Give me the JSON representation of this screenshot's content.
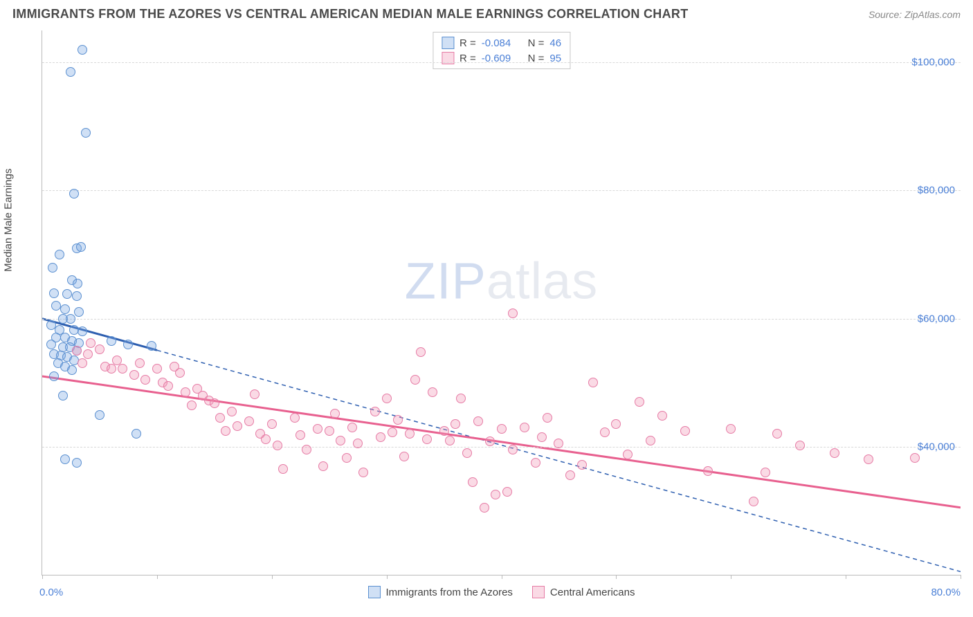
{
  "header": {
    "title": "IMMIGRANTS FROM THE AZORES VS CENTRAL AMERICAN MEDIAN MALE EARNINGS CORRELATION CHART",
    "source_prefix": "Source: ",
    "source_name": "ZipAtlas.com"
  },
  "chart": {
    "type": "scatter",
    "ylabel": "Median Male Earnings",
    "xlim": [
      0,
      80
    ],
    "ylim": [
      20000,
      105000
    ],
    "yticks": [
      40000,
      60000,
      80000,
      100000
    ],
    "ytick_labels": [
      "$40,000",
      "$60,000",
      "$80,000",
      "$100,000"
    ],
    "xtick_positions": [
      0,
      10,
      20,
      30,
      40,
      50,
      60,
      70,
      80
    ],
    "xlabel_min": "0.0%",
    "xlabel_max": "80.0%",
    "grid_color": "#d8d8d8",
    "axis_color": "#bbbbbb",
    "background_color": "#ffffff",
    "label_color": "#4a7fd6",
    "marker_radius": 7,
    "marker_stroke_width": 1,
    "watermark": {
      "zip": "ZIP",
      "rest": "atlas"
    },
    "series": [
      {
        "name": "Immigrants from the Azores",
        "fill": "rgba(120,165,225,0.35)",
        "stroke": "#5a8fd0",
        "trend_color": "#2e5fb0",
        "trend_dash_extend": true,
        "R": -0.084,
        "N": 46,
        "trend": {
          "x1": 0,
          "y1": 60000,
          "x2": 80,
          "y2": 20500
        },
        "solid_until_x": 10,
        "points": [
          [
            3.5,
            102000
          ],
          [
            2.5,
            98500
          ],
          [
            3.8,
            89000
          ],
          [
            2.8,
            79500
          ],
          [
            1.5,
            70000
          ],
          [
            3.0,
            71000
          ],
          [
            3.4,
            71200
          ],
          [
            0.9,
            68000
          ],
          [
            2.6,
            66000
          ],
          [
            3.1,
            65500
          ],
          [
            1.0,
            64000
          ],
          [
            2.2,
            63800
          ],
          [
            3.0,
            63500
          ],
          [
            1.2,
            62000
          ],
          [
            2.0,
            61500
          ],
          [
            3.2,
            61000
          ],
          [
            1.8,
            60000
          ],
          [
            2.5,
            60000
          ],
          [
            0.8,
            59000
          ],
          [
            1.5,
            58200
          ],
          [
            2.8,
            58200
          ],
          [
            3.5,
            58000
          ],
          [
            1.2,
            57000
          ],
          [
            2.0,
            57000
          ],
          [
            2.6,
            56500
          ],
          [
            3.2,
            56200
          ],
          [
            0.8,
            56000
          ],
          [
            1.8,
            55500
          ],
          [
            2.4,
            55500
          ],
          [
            3.0,
            55000
          ],
          [
            1.0,
            54500
          ],
          [
            1.6,
            54200
          ],
          [
            2.2,
            54000
          ],
          [
            2.8,
            53500
          ],
          [
            1.4,
            53000
          ],
          [
            2.0,
            52500
          ],
          [
            2.6,
            52000
          ],
          [
            1.0,
            51000
          ],
          [
            1.8,
            48000
          ],
          [
            6.0,
            56500
          ],
          [
            7.5,
            56000
          ],
          [
            9.5,
            55800
          ],
          [
            8.2,
            42000
          ],
          [
            5.0,
            45000
          ],
          [
            2.0,
            38000
          ],
          [
            3.0,
            37500
          ]
        ]
      },
      {
        "name": "Central Americans",
        "fill": "rgba(240,150,180,0.35)",
        "stroke": "#e67ba5",
        "trend_color": "#e8608f",
        "trend_dash_extend": false,
        "R": -0.609,
        "N": 95,
        "trend": {
          "x1": 0,
          "y1": 51000,
          "x2": 80,
          "y2": 30500
        },
        "solid_until_x": 80,
        "points": [
          [
            3,
            55000
          ],
          [
            4,
            54500
          ],
          [
            5,
            55200
          ],
          [
            4.2,
            56200
          ],
          [
            3.5,
            53000
          ],
          [
            5.5,
            52500
          ],
          [
            6,
            52200
          ],
          [
            6.5,
            53500
          ],
          [
            7,
            52200
          ],
          [
            8,
            51200
          ],
          [
            8.5,
            53000
          ],
          [
            9,
            50500
          ],
          [
            10,
            52200
          ],
          [
            10.5,
            50000
          ],
          [
            11,
            49500
          ],
          [
            11.5,
            52500
          ],
          [
            12,
            51500
          ],
          [
            12.5,
            48500
          ],
          [
            13,
            46500
          ],
          [
            13.5,
            49000
          ],
          [
            14,
            48000
          ],
          [
            14.5,
            47200
          ],
          [
            15,
            46800
          ],
          [
            15.5,
            44500
          ],
          [
            16,
            42500
          ],
          [
            16.5,
            45500
          ],
          [
            17,
            43200
          ],
          [
            18,
            44000
          ],
          [
            18.5,
            48200
          ],
          [
            19,
            42000
          ],
          [
            19.5,
            41200
          ],
          [
            20,
            43500
          ],
          [
            20.5,
            40200
          ],
          [
            21,
            36500
          ],
          [
            22,
            44500
          ],
          [
            22.5,
            41800
          ],
          [
            23,
            39500
          ],
          [
            24,
            42800
          ],
          [
            24.5,
            37000
          ],
          [
            25,
            42500
          ],
          [
            25.5,
            45200
          ],
          [
            26,
            41000
          ],
          [
            26.5,
            38200
          ],
          [
            27,
            43000
          ],
          [
            27.5,
            40500
          ],
          [
            28,
            36000
          ],
          [
            29,
            45500
          ],
          [
            29.5,
            41500
          ],
          [
            30,
            47500
          ],
          [
            30.5,
            42200
          ],
          [
            31,
            44200
          ],
          [
            31.5,
            38500
          ],
          [
            32,
            42000
          ],
          [
            32.5,
            50500
          ],
          [
            33,
            54800
          ],
          [
            33.5,
            41200
          ],
          [
            34,
            48500
          ],
          [
            35,
            42500
          ],
          [
            35.5,
            41000
          ],
          [
            36,
            43500
          ],
          [
            36.5,
            47500
          ],
          [
            37,
            39000
          ],
          [
            37.5,
            34500
          ],
          [
            38,
            44000
          ],
          [
            38.5,
            30500
          ],
          [
            39,
            40800
          ],
          [
            39.5,
            32500
          ],
          [
            40,
            42800
          ],
          [
            40.5,
            33000
          ],
          [
            41,
            39500
          ],
          [
            41,
            60800
          ],
          [
            42,
            43000
          ],
          [
            43,
            37500
          ],
          [
            43.5,
            41500
          ],
          [
            44,
            44500
          ],
          [
            45,
            40500
          ],
          [
            46,
            35500
          ],
          [
            47,
            37200
          ],
          [
            48,
            50000
          ],
          [
            49,
            42200
          ],
          [
            50,
            43500
          ],
          [
            51,
            38800
          ],
          [
            52,
            47000
          ],
          [
            53,
            41000
          ],
          [
            54,
            44800
          ],
          [
            56,
            42500
          ],
          [
            58,
            36200
          ],
          [
            60,
            42800
          ],
          [
            62,
            31500
          ],
          [
            63,
            36000
          ],
          [
            64,
            42000
          ],
          [
            66,
            40200
          ],
          [
            69,
            39000
          ],
          [
            72,
            38000
          ],
          [
            76,
            38200
          ]
        ]
      }
    ],
    "legend": {
      "s1_label": "Immigrants from the Azores",
      "s2_label": "Central Americans"
    },
    "stats_box": {
      "r_label": "R =",
      "n_label": "N =",
      "r1": "-0.084",
      "n1": "46",
      "r2": "-0.609",
      "n2": "95"
    }
  }
}
